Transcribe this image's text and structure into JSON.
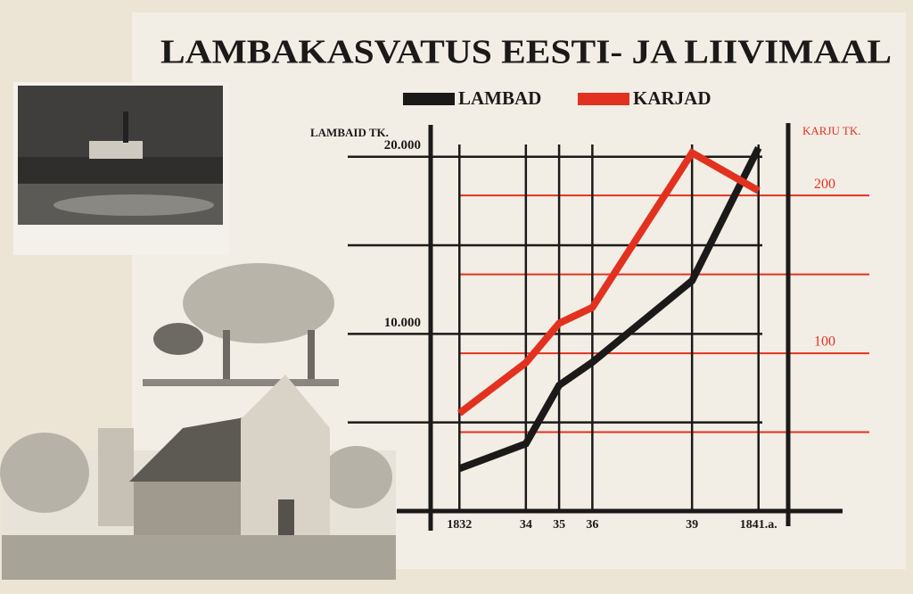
{
  "chart_data": {
    "type": "line",
    "title": "LAMBAKASVATUS EESTI- JA LIIVIMAAL",
    "y_label": "LAMBAID TK.",
    "y2_label": "KARJU TK.",
    "x": [
      1832,
      1834,
      1835,
      1836,
      1839,
      1841
    ],
    "xlim": [
      1831,
      1842
    ],
    "xticks": [
      {
        "value": 1832,
        "label": "1832"
      },
      {
        "value": 1834,
        "label": "34"
      },
      {
        "value": 1835,
        "label": "35"
      },
      {
        "value": 1836,
        "label": "36"
      },
      {
        "value": 1839,
        "label": "39"
      },
      {
        "value": 1841,
        "label": "1841.a."
      }
    ],
    "ylim": [
      0,
      22000
    ],
    "yticks": [
      {
        "value": 10000,
        "label": "10.000"
      },
      {
        "value": 20000,
        "label": "20.000"
      }
    ],
    "ygrid": [
      5000,
      10000,
      15000,
      20000
    ],
    "y2lim": [
      0,
      247
    ],
    "y2ticks": [
      100,
      200
    ],
    "y2grid": [
      50,
      100,
      150,
      200
    ],
    "grid": true,
    "legend": "top",
    "series": [
      {
        "name": "LAMBAD",
        "color": "#1c1a18",
        "values": [
          2400,
          3800,
          7100,
          8400,
          13000,
          20500
        ]
      },
      {
        "name": "KARJAD",
        "color": "#e2321f",
        "axis": "y2",
        "values": [
          62,
          94,
          119,
          129,
          227,
          203
        ]
      }
    ]
  }
}
